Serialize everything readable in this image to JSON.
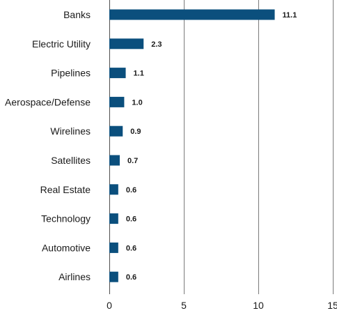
{
  "chart_data": {
    "type": "bar",
    "orientation": "horizontal",
    "categories": [
      "Banks",
      "Electric Utility",
      "Pipelines",
      "Aerospace/Defense",
      "Wirelines",
      "Satellites",
      "Real Estate",
      "Technology",
      "Automotive",
      "Airlines"
    ],
    "values": [
      11.1,
      2.3,
      1.1,
      1.0,
      0.9,
      0.7,
      0.6,
      0.6,
      0.6,
      0.6
    ],
    "value_labels": [
      "11.1",
      "2.3",
      "1.1",
      "1.0",
      "0.9",
      "0.7",
      "0.6",
      "0.6",
      "0.6",
      "0.6"
    ],
    "title": "",
    "xlabel": "",
    "ylabel": "",
    "xlim": [
      0,
      15
    ],
    "x_ticks": [
      0,
      5,
      10,
      15
    ],
    "x_tick_labels": [
      "0",
      "5",
      "10",
      "15"
    ],
    "grid": "vertical",
    "legend": "none",
    "bar_color": "#0b4f7d"
  }
}
